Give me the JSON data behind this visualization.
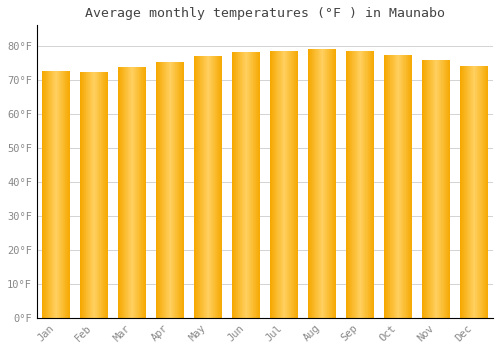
{
  "title": "Average monthly temperatures (°F ) in Maunabo",
  "months": [
    "Jan",
    "Feb",
    "Mar",
    "Apr",
    "May",
    "Jun",
    "Jul",
    "Aug",
    "Sep",
    "Oct",
    "Nov",
    "Dec"
  ],
  "values": [
    72.5,
    72.3,
    73.8,
    75.2,
    77.0,
    78.1,
    78.3,
    79.0,
    78.4,
    77.3,
    75.7,
    74.0
  ],
  "bar_color_center": "#FFD060",
  "bar_color_edge": "#F5A800",
  "background_color": "#FFFFFF",
  "plot_bg_color": "#FFFFFF",
  "grid_color": "#CCCCCC",
  "yticks": [
    0,
    10,
    20,
    30,
    40,
    50,
    60,
    70,
    80
  ],
  "ylim": [
    0,
    86
  ],
  "title_fontsize": 9.5,
  "tick_fontsize": 7.5,
  "font_family": "monospace",
  "axis_color": "#888888",
  "title_color": "#444444"
}
